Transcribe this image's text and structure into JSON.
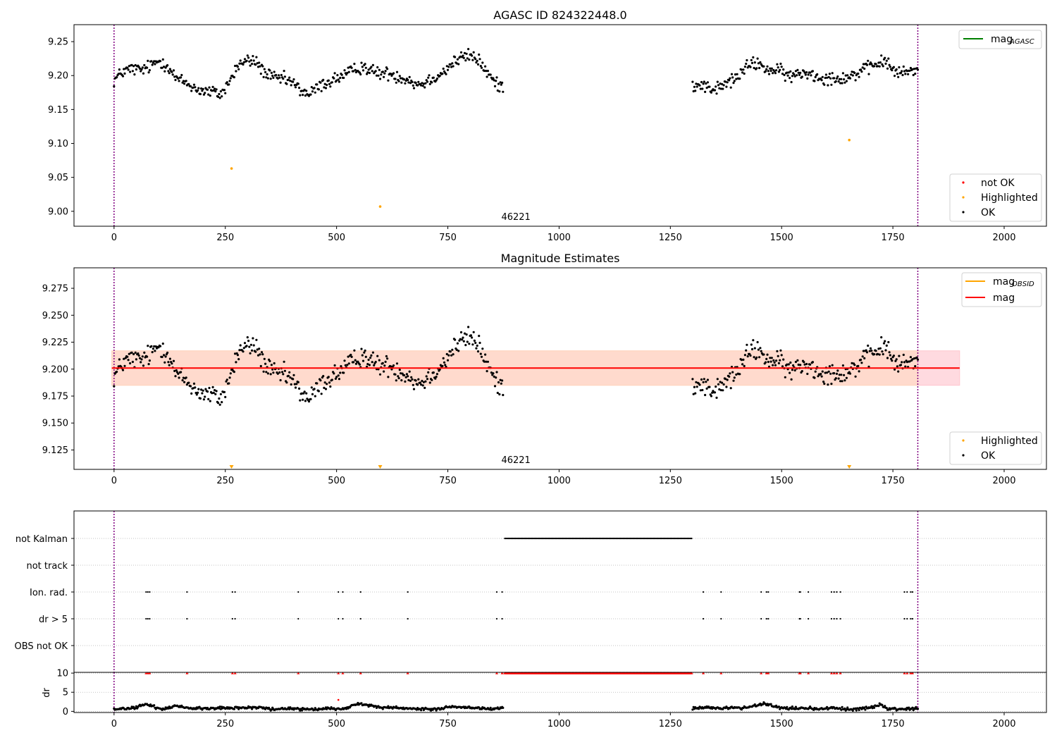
{
  "chart_data": [
    {
      "type": "scatter",
      "title": "AGASC ID 824322448.0",
      "xlim": [
        -90,
        2095
      ],
      "ylim": [
        8.978,
        9.275
      ],
      "xticks": [
        0,
        250,
        500,
        750,
        1000,
        1250,
        1500,
        1750,
        2000
      ],
      "yticks": [
        9.0,
        9.05,
        9.1,
        9.15,
        9.2,
        9.25
      ],
      "ytick_labels": [
        "9.00",
        "9.05",
        "9.10",
        "9.15",
        "9.20",
        "9.25"
      ],
      "vlines": [
        0,
        1806
      ],
      "annotation": {
        "text": "46221",
        "x": 903
      },
      "line_legend": {
        "position": "top-right",
        "entries": [
          {
            "label": "mag",
            "sub": "AGASC",
            "color": "#008000"
          }
        ]
      },
      "point_legend": {
        "position": "lower-right",
        "entries": [
          {
            "label": "not OK",
            "color": "#ff0000"
          },
          {
            "label": "Highlighted",
            "color": "#ffa500"
          },
          {
            "label": "OK",
            "color": "#000000"
          }
        ]
      },
      "highlighted_points": [
        [
          264,
          9.063
        ],
        [
          598,
          9.007
        ],
        [
          1652,
          9.105
        ]
      ],
      "ok_series": {
        "segments": [
          [
            0,
            875
          ],
          [
            1300,
            1806
          ]
        ],
        "profile": [
          [
            0,
            9.193
          ],
          [
            20,
            9.206
          ],
          [
            40,
            9.21
          ],
          [
            60,
            9.208
          ],
          [
            80,
            9.213
          ],
          [
            100,
            9.222
          ],
          [
            120,
            9.215
          ],
          [
            140,
            9.195
          ],
          [
            160,
            9.19
          ],
          [
            180,
            9.182
          ],
          [
            200,
            9.177
          ],
          [
            220,
            9.176
          ],
          [
            240,
            9.172
          ],
          [
            260,
            9.192
          ],
          [
            280,
            9.216
          ],
          [
            300,
            9.222
          ],
          [
            320,
            9.22
          ],
          [
            340,
            9.203
          ],
          [
            360,
            9.196
          ],
          [
            380,
            9.195
          ],
          [
            400,
            9.19
          ],
          [
            420,
            9.178
          ],
          [
            440,
            9.172
          ],
          [
            460,
            9.184
          ],
          [
            480,
            9.19
          ],
          [
            500,
            9.196
          ],
          [
            520,
            9.201
          ],
          [
            540,
            9.208
          ],
          [
            560,
            9.214
          ],
          [
            580,
            9.206
          ],
          [
            600,
            9.203
          ],
          [
            620,
            9.203
          ],
          [
            640,
            9.198
          ],
          [
            660,
            9.195
          ],
          [
            680,
            9.187
          ],
          [
            700,
            9.19
          ],
          [
            720,
            9.198
          ],
          [
            740,
            9.205
          ],
          [
            760,
            9.218
          ],
          [
            780,
            9.226
          ],
          [
            800,
            9.23
          ],
          [
            820,
            9.222
          ],
          [
            840,
            9.203
          ],
          [
            860,
            9.186
          ],
          [
            875,
            9.185
          ],
          [
            1300,
            9.186
          ],
          [
            1320,
            9.188
          ],
          [
            1340,
            9.18
          ],
          [
            1360,
            9.182
          ],
          [
            1380,
            9.19
          ],
          [
            1400,
            9.197
          ],
          [
            1420,
            9.212
          ],
          [
            1440,
            9.219
          ],
          [
            1460,
            9.212
          ],
          [
            1480,
            9.207
          ],
          [
            1500,
            9.206
          ],
          [
            1520,
            9.198
          ],
          [
            1540,
            9.203
          ],
          [
            1560,
            9.205
          ],
          [
            1580,
            9.198
          ],
          [
            1600,
            9.197
          ],
          [
            1620,
            9.196
          ],
          [
            1640,
            9.197
          ],
          [
            1660,
            9.2
          ],
          [
            1680,
            9.207
          ],
          [
            1700,
            9.212
          ],
          [
            1720,
            9.22
          ],
          [
            1740,
            9.218
          ],
          [
            1760,
            9.202
          ],
          [
            1780,
            9.206
          ],
          [
            1806,
            9.208
          ]
        ],
        "noise": 0.008,
        "step": 2
      }
    },
    {
      "type": "scatter",
      "title": "Magnitude Estimates",
      "xlim": [
        -90,
        2095
      ],
      "ylim": [
        9.107,
        9.294
      ],
      "xticks": [
        0,
        250,
        500,
        750,
        1000,
        1250,
        1500,
        1750,
        2000
      ],
      "yticks": [
        9.125,
        9.15,
        9.175,
        9.2,
        9.225,
        9.25,
        9.275
      ],
      "ytick_labels": [
        "9.125",
        "9.150",
        "9.175",
        "9.200",
        "9.225",
        "9.250",
        "9.275"
      ],
      "vlines": [
        0,
        1806
      ],
      "annotation": {
        "text": "46221",
        "x": 903
      },
      "mag_line": 9.201,
      "bands": [
        {
          "x": [
            -5,
            1900
          ],
          "y": [
            9.185,
            9.217
          ],
          "color": "#ffb6c1"
        },
        {
          "x": [
            -5,
            1806
          ],
          "y": [
            9.185,
            9.217
          ],
          "color": "#ffdab9"
        }
      ],
      "line_legend": {
        "position": "top-right",
        "entries": [
          {
            "label": "mag",
            "sub": "OBSID",
            "color": "#ffa500"
          },
          {
            "label": "mag",
            "sub": "",
            "color": "#ff0000"
          }
        ]
      },
      "point_legend": {
        "position": "lower-right",
        "entries": [
          {
            "label": "Highlighted",
            "color": "#ffa500"
          },
          {
            "label": "OK",
            "color": "#000000"
          }
        ]
      },
      "offscale_markers_x": [
        264,
        598,
        1652
      ]
    },
    {
      "type": "scatter",
      "title": "",
      "xlim": [
        -90,
        2095
      ],
      "categories": [
        "not Kalman",
        "not track",
        "Ion. rad.",
        "dr > 5",
        "OBS not OK"
      ],
      "vlines": [
        0,
        1806
      ],
      "flags": {
        "not Kalman": {
          "ranges": [
            [
              878,
              1298
            ]
          ],
          "points": []
        },
        "not track": {
          "ranges": [],
          "points": []
        },
        "Ion. rad.": {
          "ranges": [],
          "points": [
            72,
            76,
            80,
            164,
            266,
            272,
            414,
            504,
            514,
            554,
            660,
            860,
            872,
            1324,
            1364,
            1454,
            1466,
            1470,
            1540,
            1542,
            1560,
            1612,
            1618,
            1624,
            1632,
            1776,
            1782,
            1790,
            1794
          ]
        },
        "dr > 5": {
          "ranges": [],
          "points": [
            72,
            76,
            80,
            164,
            266,
            272,
            414,
            504,
            514,
            554,
            660,
            860,
            872,
            1324,
            1364,
            1454,
            1466,
            1470,
            1540,
            1542,
            1560,
            1612,
            1618,
            1624,
            1632,
            1776,
            1782,
            1790,
            1794
          ]
        },
        "OBS not OK": {
          "ranges": [],
          "points": []
        }
      }
    },
    {
      "type": "scatter",
      "title": "",
      "xlim": [
        -90,
        2095
      ],
      "ylim": [
        -0.3,
        10.2
      ],
      "ylabel": "dr",
      "yticks": [
        0,
        5,
        10
      ],
      "ytick_labels": [
        "0",
        "5",
        "10"
      ],
      "xticks": [
        0,
        250,
        500,
        750,
        1000,
        1250,
        1500,
        1750,
        2000
      ],
      "xtick_labels": [
        "0",
        "250",
        "500",
        "750",
        "1000",
        "1250",
        "1500",
        "1750",
        "2000"
      ],
      "vlines": [
        0,
        1806
      ],
      "clipped_value": 10,
      "clipped_ranges": [
        [
          878,
          1298
        ]
      ],
      "clipped_points": [
        72,
        76,
        80,
        164,
        266,
        272,
        414,
        504,
        514,
        554,
        660,
        860,
        872,
        1324,
        1364,
        1454,
        1466,
        1470,
        1540,
        1542,
        1560,
        1612,
        1618,
        1624,
        1632,
        1776,
        1782,
        1790,
        1794
      ],
      "notok_points": [
        [
          504,
          3.0
        ]
      ],
      "ok_series": {
        "segments": [
          [
            0,
            875
          ],
          [
            1300,
            1806
          ]
        ],
        "profile": [
          [
            0,
            0.5
          ],
          [
            40,
            0.8
          ],
          [
            70,
            1.8
          ],
          [
            90,
            1.2
          ],
          [
            110,
            0.6
          ],
          [
            140,
            1.5
          ],
          [
            160,
            1.0
          ],
          [
            200,
            0.7
          ],
          [
            240,
            0.9
          ],
          [
            280,
            0.9
          ],
          [
            320,
            1.1
          ],
          [
            360,
            0.5
          ],
          [
            400,
            0.8
          ],
          [
            440,
            0.4
          ],
          [
            480,
            0.7
          ],
          [
            520,
            0.7
          ],
          [
            550,
            2.2
          ],
          [
            570,
            1.6
          ],
          [
            600,
            1.0
          ],
          [
            640,
            1.0
          ],
          [
            680,
            0.6
          ],
          [
            720,
            0.6
          ],
          [
            760,
            1.1
          ],
          [
            800,
            1.0
          ],
          [
            840,
            0.7
          ],
          [
            875,
            0.8
          ],
          [
            1300,
            0.8
          ],
          [
            1340,
            0.9
          ],
          [
            1380,
            0.9
          ],
          [
            1420,
            1.0
          ],
          [
            1460,
            2.1
          ],
          [
            1500,
            0.8
          ],
          [
            1540,
            0.9
          ],
          [
            1580,
            0.6
          ],
          [
            1620,
            0.9
          ],
          [
            1660,
            0.5
          ],
          [
            1700,
            0.9
          ],
          [
            1720,
            1.8
          ],
          [
            1740,
            0.6
          ],
          [
            1780,
            0.6
          ],
          [
            1806,
            0.9
          ]
        ],
        "noise": 0.3,
        "step": 2
      }
    }
  ]
}
